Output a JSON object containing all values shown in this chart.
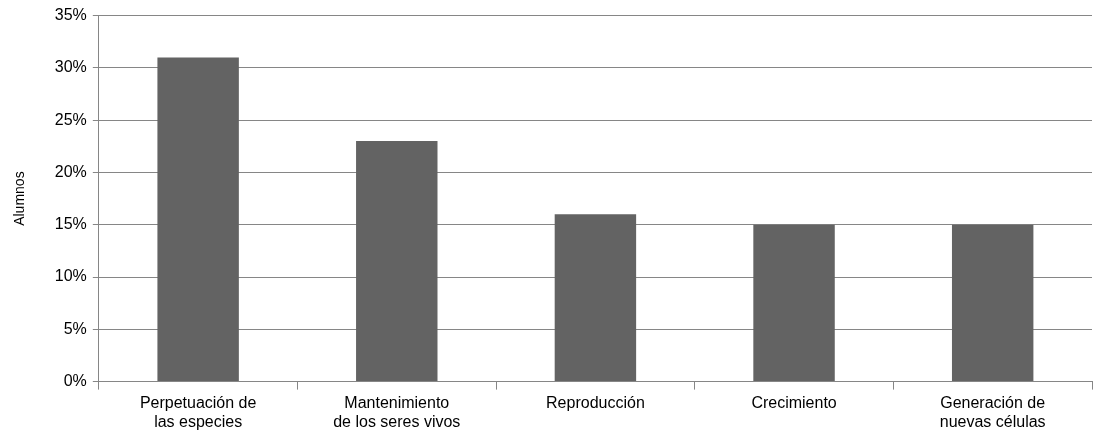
{
  "chart_data": {
    "type": "bar",
    "ylabel": "Alumnos",
    "categories": [
      "Perpetuación de las especies",
      "Mantenimiento de los seres vivos",
      "Reproducción",
      "Crecimiento",
      "Generación de nuevas células"
    ],
    "values": [
      31,
      23,
      16,
      15,
      15
    ],
    "color": "#636363",
    "ylim": [
      0,
      35
    ],
    "yticks": [
      {
        "value": 0,
        "label": "0%"
      },
      {
        "value": 5,
        "label": "5%"
      },
      {
        "value": 10,
        "label": "10%"
      },
      {
        "value": 15,
        "label": "15%"
      },
      {
        "value": 20,
        "label": "20%"
      },
      {
        "value": 25,
        "label": "25%"
      },
      {
        "value": 30,
        "label": "30%"
      },
      {
        "value": 35,
        "label": "35%"
      }
    ],
    "grid": "y",
    "legend": false
  }
}
